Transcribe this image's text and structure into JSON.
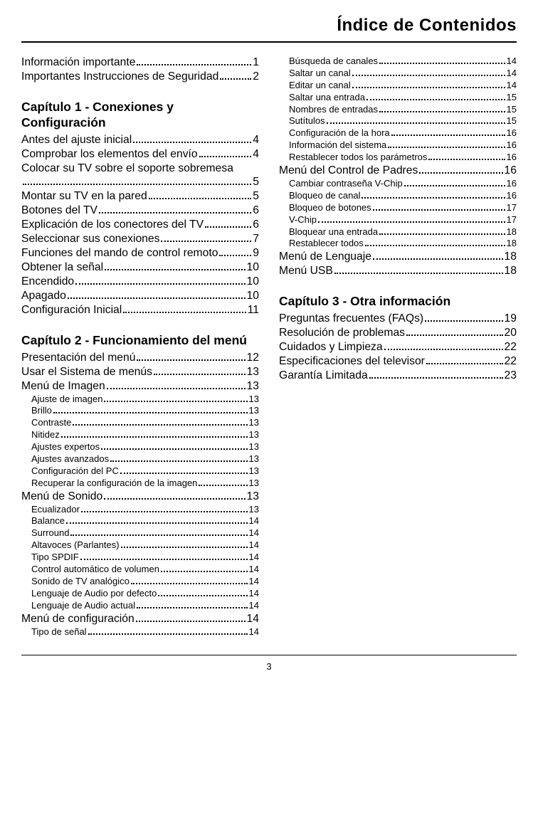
{
  "page_number": "3",
  "title": "Índice de Contenidos",
  "left": {
    "intro": [
      {
        "label": "Información importante",
        "page": "1"
      },
      {
        "label": "Importantes Instrucciones de Seguridad",
        "page": "2"
      }
    ],
    "ch1": {
      "heading": "Capítulo 1 - Conexiones y Configuración",
      "entries": [
        {
          "label": "Antes del ajuste inicial",
          "page": "4"
        },
        {
          "label": "Comprobar los elementos del envío",
          "page": "4"
        },
        {
          "label": "Colocar su TV sobre el soporte sobremesa",
          "wrap": true,
          "page": "5"
        },
        {
          "label": "Montar su TV en la pared",
          "page": "5"
        },
        {
          "label": "Botones del TV",
          "page": "6"
        },
        {
          "label": "Explicación de los conectores del TV",
          "page": "6"
        },
        {
          "label": "Seleccionar sus conexiones",
          "page": "7"
        },
        {
          "label": "Funciones del mando de control remoto",
          "page": "9"
        },
        {
          "label": "Obtener la señal",
          "page": "10"
        },
        {
          "label": "Encendido",
          "page": "10"
        },
        {
          "label": "Apagado",
          "page": "10"
        },
        {
          "label": "Configuración Inicial",
          "page": "11"
        }
      ]
    },
    "ch2": {
      "heading": "Capítulo 2 - Funcionamiento del menú",
      "entries": [
        {
          "label": "Presentación del menú",
          "page": "12"
        },
        {
          "label": "Usar el Sistema de menús",
          "page": "13"
        },
        {
          "label": "Menú de Imagen",
          "page": "13",
          "sub": [
            {
              "label": "Ajuste de imagen",
              "page": "13"
            },
            {
              "label": "Brillo",
              "page": "13"
            },
            {
              "label": "Contraste",
              "page": "13"
            },
            {
              "label": "Nitidez",
              "page": "13"
            },
            {
              "label": "Ajustes expertos",
              "page": "13"
            },
            {
              "label": "Ajustes avanzados",
              "page": "13"
            },
            {
              "label": "Configuración del PC",
              "page": "13"
            },
            {
              "label": "Recuperar la configuración de la imagen",
              "page": "13"
            }
          ]
        },
        {
          "label": "Menú de Sonido",
          "page": "13",
          "sub": [
            {
              "label": "Ecualizador",
              "page": "13"
            },
            {
              "label": "Balance",
              "page": "14"
            },
            {
              "label": "Surround",
              "page": "14"
            },
            {
              "label": "Altavoces (Parlantes)",
              "page": "14"
            },
            {
              "label": "Tipo SPDIF",
              "page": "14"
            },
            {
              "label": "Control automático de volumen",
              "page": "14"
            },
            {
              "label": "Sonido de TV analógico",
              "page": "14"
            },
            {
              "label": "Lenguaje de Audio por defecto",
              "page": "14"
            },
            {
              "label": "Lenguaje de Audio actual",
              "page": "14"
            }
          ]
        },
        {
          "label": "Menú de configuración",
          "page": "14",
          "sub": [
            {
              "label": "Tipo de señal",
              "page": "14"
            }
          ]
        }
      ]
    }
  },
  "right": {
    "config_cont_sub": [
      {
        "label": "Búsqueda de canales",
        "page": "14"
      },
      {
        "label": "Saltar un canal",
        "page": "14"
      },
      {
        "label": "Editar un canal",
        "page": "14"
      },
      {
        "label": "Saltar una entrada",
        "page": "15"
      },
      {
        "label": "Nombres de entradas",
        "page": "15"
      },
      {
        "label": "Sutítulos",
        "page": "15"
      },
      {
        "label": "Configuración de la hora",
        "page": "16"
      },
      {
        "label": "Información del sistema",
        "page": "16"
      },
      {
        "label": "Restablecer todos los parámetros",
        "page": "16"
      }
    ],
    "parental": {
      "label": "Menú del Control de Padres",
      "page": "16",
      "sub": [
        {
          "label": "Cambiar contraseña V-Chip",
          "page": "16"
        },
        {
          "label": "Bloqueo de canal",
          "page": "16"
        },
        {
          "label": "Bloqueo de botones",
          "page": "17"
        },
        {
          "label": "V-Chip",
          "page": "17"
        },
        {
          "label": "Bloquear una entrada",
          "page": "18"
        },
        {
          "label": "Restablecer todos",
          "page": "18"
        }
      ]
    },
    "lang": {
      "label": "Menú de Lenguaje",
      "page": "18"
    },
    "usb": {
      "label": "Menú USB",
      "page": "18"
    },
    "ch3": {
      "heading": "Capítulo 3 - Otra información",
      "entries": [
        {
          "label": "Preguntas frecuentes (FAQs)",
          "page": "19"
        },
        {
          "label": "Resolución de problemas",
          "page": "20"
        },
        {
          "label": "Cuidados y Limpieza",
          "page": "22"
        },
        {
          "label": "Especificaciones del televisor",
          "page": "22"
        },
        {
          "label": "Garantía Limitada",
          "page": "23"
        }
      ]
    }
  }
}
